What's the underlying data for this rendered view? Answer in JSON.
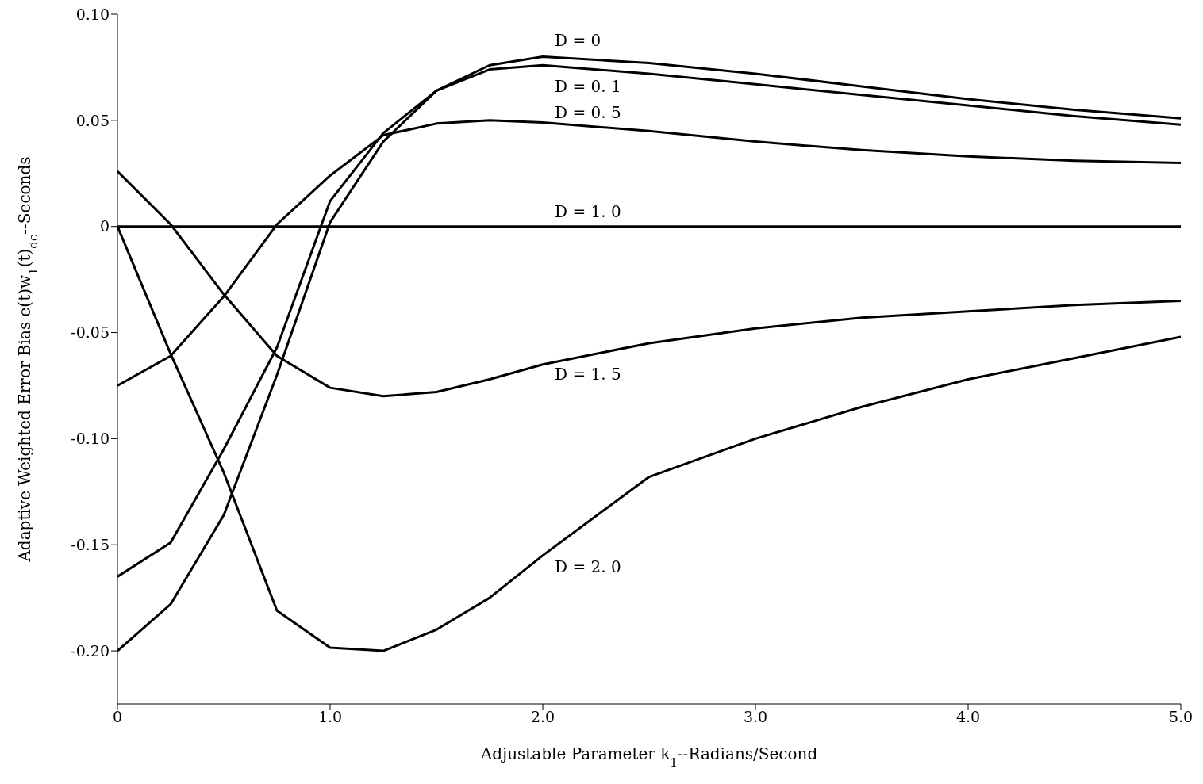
{
  "chart_data": {
    "type": "line",
    "xlabel": "Adjustable Parameter k$_{1}$--Radians/Second",
    "ylabel": "Adaptive Weighted Error Bias e(t)w$_{1}$(t)$_{dc}$--Seconds",
    "x": [
      0,
      0.25,
      0.5,
      0.75,
      1.0,
      1.25,
      1.5,
      1.75,
      2.0,
      2.5,
      3.0,
      3.5,
      4.0,
      4.5,
      5.0
    ],
    "series": [
      {
        "name": "D = 0",
        "color": "#000000",
        "values": [
          -0.2,
          -0.178,
          -0.136,
          -0.07,
          0.002,
          0.04,
          0.064,
          0.076,
          0.08,
          0.077,
          0.072,
          0.066,
          0.06,
          0.055,
          0.051
        ]
      },
      {
        "name": "D = 0. 1",
        "color": "#000000",
        "values": [
          -0.165,
          -0.149,
          -0.105,
          -0.057,
          0.012,
          0.044,
          0.064,
          0.074,
          0.076,
          0.072,
          0.067,
          0.062,
          0.057,
          0.052,
          0.048
        ]
      },
      {
        "name": "D = 0. 5",
        "color": "#000000",
        "values": [
          -0.075,
          -0.061,
          -0.033,
          0.001,
          0.024,
          0.043,
          0.0485,
          0.05,
          0.049,
          0.045,
          0.04,
          0.036,
          0.033,
          0.031,
          0.03
        ]
      },
      {
        "name": "D = 1. 0",
        "color": "#000000",
        "values": [
          0,
          0,
          0,
          0,
          0,
          0,
          0,
          0,
          0,
          0,
          0,
          0,
          0,
          0,
          0
        ]
      },
      {
        "name": "D = 1. 5",
        "color": "#000000",
        "values": [
          0.026,
          0.001,
          -0.032,
          -0.061,
          -0.076,
          -0.08,
          -0.078,
          -0.072,
          -0.065,
          -0.055,
          -0.048,
          -0.043,
          -0.04,
          -0.037,
          -0.035
        ]
      },
      {
        "name": "D = 2. 0",
        "color": "#000000",
        "values": [
          0,
          -0.06,
          -0.116,
          -0.181,
          -0.1985,
          -0.2,
          -0.19,
          -0.175,
          -0.155,
          -0.118,
          -0.1,
          -0.085,
          -0.072,
          -0.062,
          -0.052
        ]
      }
    ],
    "xlim": [
      0,
      5
    ],
    "xticks": [
      0,
      {
        "value": 1,
        "label": "1.0"
      },
      {
        "value": 2,
        "label": "2.0"
      },
      {
        "value": 3,
        "label": "3.0"
      },
      {
        "value": 4,
        "label": "4.0"
      },
      {
        "value": 5,
        "label": "5.0"
      }
    ],
    "ylim": [
      -0.225,
      0.1
    ],
    "yticks": [
      {
        "value": -0.2,
        "label": "-0.20"
      },
      {
        "value": -0.15,
        "label": "-0.15"
      },
      {
        "value": -0.1,
        "label": "-0.10"
      },
      {
        "value": -0.05,
        "label": "-0.05"
      },
      0,
      {
        "value": 0.05,
        "label": "0.05"
      },
      {
        "value": 0.1,
        "label": "0.10"
      }
    ],
    "grid": false,
    "legend": false,
    "marker": "none",
    "line_style": "solid"
  }
}
